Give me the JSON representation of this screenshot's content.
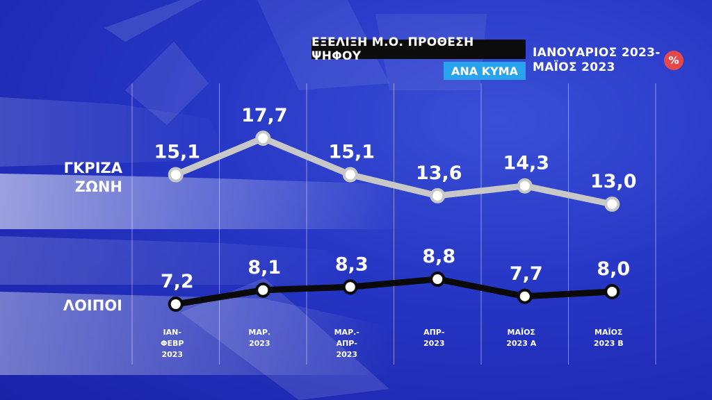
{
  "header": {
    "title": "ΕΞΕΛΙΞΗ Μ.Ο. ΠΡΟΘΕΣΗ ΨΗΦΟΥ",
    "subtitle": "ΑΝΑ ΚΥΜΑ",
    "period_line1": "ΙΑΝΟΥΑΡΙΟΣ 2023-",
    "period_line2": "ΜΑΪΟΣ 2023",
    "unit_badge": "%"
  },
  "colors": {
    "background": "#2535c4",
    "grey_zone_line": "#c8c8c8",
    "others_line": "#0a0a0a",
    "title_bg": "#0c0c0c",
    "subtitle_bg": "#2aa3ee",
    "badge_bg": "#e5484b"
  },
  "chart_data": {
    "type": "line",
    "categories": [
      [
        "ΙΑΝ-",
        "ΦΕΒΡ",
        "2023"
      ],
      [
        "ΜΑΡ.",
        "2023"
      ],
      [
        "ΜΑΡ.-",
        "ΑΠΡ-",
        "2023"
      ],
      [
        "ΑΠΡ-",
        "2023"
      ],
      [
        "ΜΑΪΟΣ",
        "2023 Α"
      ],
      [
        "ΜΑΪΟΣ",
        "2023 Β"
      ]
    ],
    "series": [
      {
        "name_lines": [
          "ΓΚΡΙΖΑ",
          "ΖΩΝΗ"
        ],
        "values": [
          15.1,
          17.7,
          15.1,
          13.6,
          14.3,
          13.0
        ],
        "labels": [
          "15,1",
          "17,7",
          "15,1",
          "13,6",
          "14,3",
          "13,0"
        ],
        "color": "#c8c8c8"
      },
      {
        "name_lines": [
          "ΛΟΙΠΟΙ"
        ],
        "values": [
          7.2,
          8.1,
          8.3,
          8.8,
          7.7,
          8.0
        ],
        "labels": [
          "7,2",
          "8,1",
          "8,3",
          "8,8",
          "7,7",
          "8,0"
        ],
        "color": "#0a0a0a"
      }
    ],
    "grid": "vertical",
    "legend": "left"
  }
}
